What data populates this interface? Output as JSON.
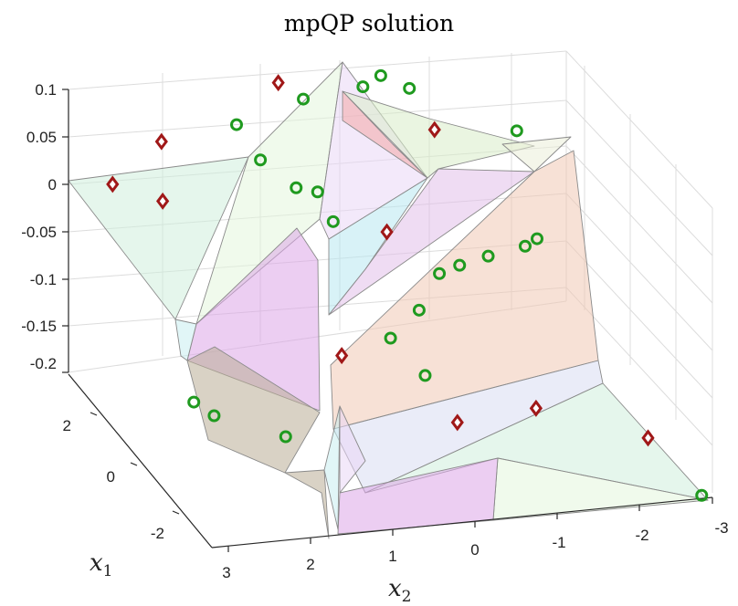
{
  "chart_data": {
    "type": "scatter",
    "title": "mpQP solution",
    "xlabel": "x2",
    "ylabel": "x1",
    "x_ticks": [
      "3",
      "2",
      "1",
      "0",
      "-1",
      "-2",
      "-3"
    ],
    "y_ticks": [
      "2",
      "0",
      "-2"
    ],
    "z_ticks": [
      "0.1",
      "0.05",
      "0",
      "-0.05",
      "-0.1",
      "-0.15",
      "-0.2"
    ],
    "xlim": [
      -3,
      3
    ],
    "ylim": [
      -3,
      3
    ],
    "zlim": [
      -0.2,
      0.1
    ],
    "grid": true,
    "colors": {
      "diamond": "#a01818",
      "circle": "#1f9a1f",
      "region_palette": [
        "#cfeedd",
        "#e4f5dc",
        "#dda6e8",
        "#b9ad96",
        "#c8eef0",
        "#e9d7f5",
        "#f2a7a6",
        "#d9ecc8",
        "#ebefd8",
        "#b8e7f0",
        "#e2c0ea",
        "#f0c8b4",
        "#d8dcf3"
      ]
    },
    "series": [
      {
        "marker": "diamond",
        "points": [
          {
            "x": 2.5,
            "y": 2.9,
            "z": 0.0
          },
          {
            "x": 2.0,
            "y": 2.6,
            "z": 0.05
          },
          {
            "x": 2.1,
            "y": 2.2,
            "z": 0.0
          },
          {
            "x": 0.6,
            "y": 2.6,
            "z": 0.1
          },
          {
            "x": -0.7,
            "y": 0.6,
            "z": 0.1
          },
          {
            "x": -0.1,
            "y": 0.5,
            "z": 0.0
          },
          {
            "x": 1.1,
            "y": -1.8,
            "z": -0.05
          },
          {
            "x": 0.0,
            "y": -2.8,
            "z": -0.1
          },
          {
            "x": -1.0,
            "y": -2.6,
            "z": -0.1
          },
          {
            "x": -2.4,
            "y": -2.4,
            "z": -0.15
          }
        ]
      },
      {
        "marker": "circle",
        "points": [
          {
            "x": 1.1,
            "y": 2.6,
            "z": 0.06
          },
          {
            "x": 0.3,
            "y": 2.6,
            "z": 0.08
          },
          {
            "x": 0.9,
            "y": 2.3,
            "z": 0.03
          },
          {
            "x": 0.5,
            "y": 2.2,
            "z": 0.0
          },
          {
            "x": 0.3,
            "y": 2.0,
            "z": 0.0
          },
          {
            "x": -0.3,
            "y": 2.2,
            "z": 0.1
          },
          {
            "x": -0.8,
            "y": 2.0,
            "z": 0.1
          },
          {
            "x": -0.6,
            "y": 2.5,
            "z": 0.1
          },
          {
            "x": 0.4,
            "y": 1.0,
            "z": 0.0
          },
          {
            "x": -1.6,
            "y": 0.3,
            "z": 0.1
          },
          {
            "x": 2.3,
            "y": 0.2,
            "z": -0.15
          },
          {
            "x": 2.2,
            "y": -0.3,
            "z": -0.15
          },
          {
            "x": 1.6,
            "y": -1.2,
            "z": -0.15
          },
          {
            "x": 0.4,
            "y": -1.4,
            "z": -0.05
          },
          {
            "x": 0.0,
            "y": -1.2,
            "z": -0.03
          },
          {
            "x": -0.3,
            "y": -1.0,
            "z": 0.0
          },
          {
            "x": -0.6,
            "y": -0.8,
            "z": 0.0
          },
          {
            "x": -1.0,
            "y": -0.6,
            "z": 0.0
          },
          {
            "x": -1.5,
            "y": -0.4,
            "z": 0.0
          },
          {
            "x": -1.7,
            "y": -0.2,
            "z": 0.0
          },
          {
            "x": 0.1,
            "y": -1.8,
            "z": -0.08
          },
          {
            "x": -2.9,
            "y": -2.9,
            "z": -0.2
          }
        ]
      }
    ]
  }
}
